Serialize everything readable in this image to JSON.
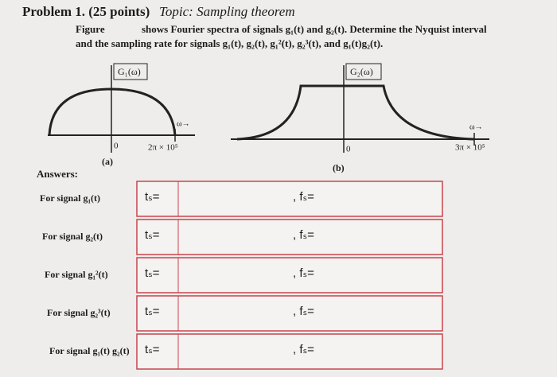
{
  "header": {
    "problem": "Problem 1. (25 points)",
    "topic": "Topic: Sampling theorem",
    "figure_ref": "Figure",
    "line1": "shows Fourier spectra of signals g₁(t) and g₂(t). Determine the Nyquist interval",
    "line2": "and the sampling rate for signals g₁(t), g₂(t), g₁²(t), g₂³(t), and g₁(t)g₂(t)."
  },
  "figures": [
    {
      "label": "G₁(ω)",
      "origin": "0",
      "axis": "ω→",
      "bandwidth": "2π × 10⁵",
      "caption": "(a)"
    },
    {
      "label": "G₂(ω)",
      "origin": "0",
      "axis": "ω→",
      "bandwidth": "3π × 10⁵",
      "caption": "(b)"
    }
  ],
  "answers": {
    "title": "Answers:",
    "rows": [
      {
        "signal": "For signal g₁(t)",
        "ts": "tₛ=",
        "fs": ", fₛ="
      },
      {
        "signal": "For signal g₂(t)",
        "ts": "tₛ=",
        "fs": ", fₛ="
      },
      {
        "signal": "For signal g₁²(t)",
        "ts": "tₛ=",
        "fs": ", fₛ="
      },
      {
        "signal": "For signal g₂³(t)",
        "ts": "tₛ=",
        "fs": ", fₛ="
      },
      {
        "signal": "For signal g₁(t) g₂(t)",
        "ts": "tₛ=",
        "fs": ", fₛ="
      }
    ]
  }
}
